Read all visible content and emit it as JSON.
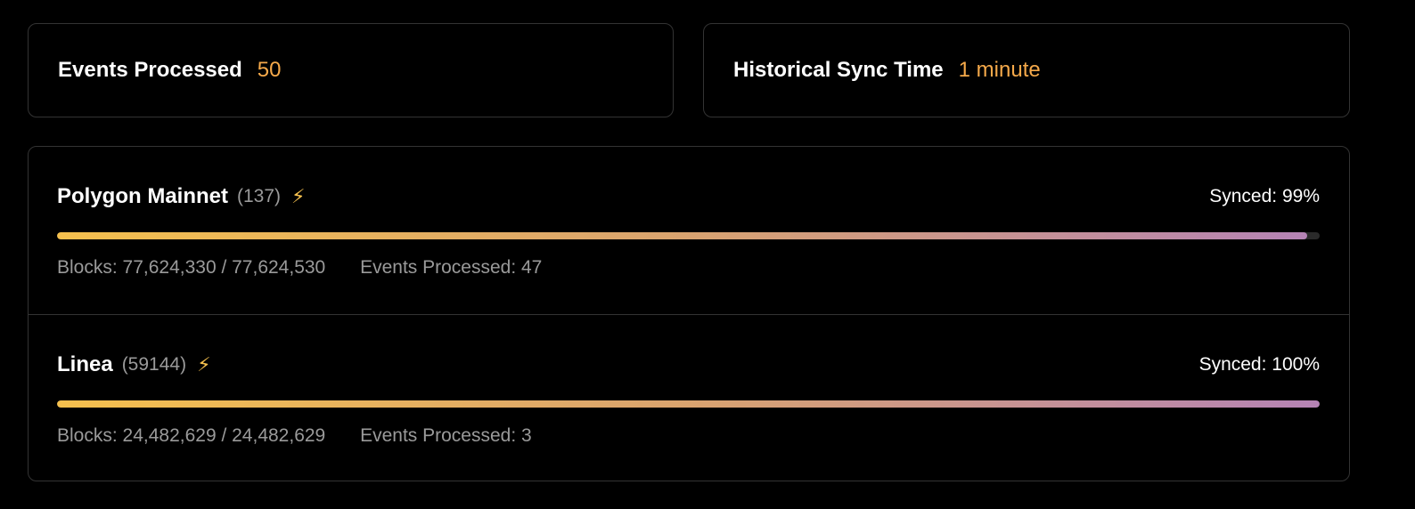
{
  "stats": [
    {
      "label": "Events Processed",
      "value": "50"
    },
    {
      "label": "Historical Sync Time",
      "value": "1 minute"
    }
  ],
  "chains": [
    {
      "name": "Polygon Mainnet",
      "id": "(137)",
      "icon": "lightning-icon",
      "synced": "Synced: 99%",
      "progress": 0.99,
      "blocks": "Blocks: 77,624,330 / 77,624,530",
      "events": "Events Processed: 47"
    },
    {
      "name": "Linea",
      "id": "(59144)",
      "icon": "lightning-icon",
      "synced": "Synced: 100%",
      "progress": 1.0,
      "blocks": "Blocks: 24,482,629 / 24,482,629",
      "events": "Events Processed: 3"
    }
  ],
  "colors": {
    "accent": "#f5a94a",
    "gradient_start": "#f5c04e",
    "gradient_end": "#b583b5"
  }
}
